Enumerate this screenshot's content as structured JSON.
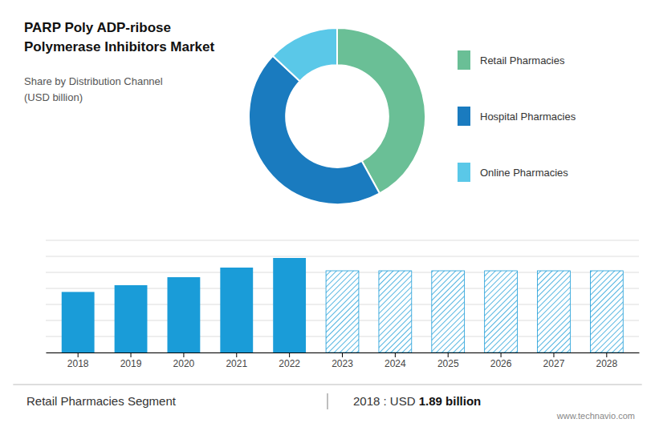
{
  "chart_data": [
    {
      "type": "pie",
      "title": [
        "PARP Poly ADP-ribose",
        "Polymerase Inhibitors Market"
      ],
      "subtitle": [
        "Share by Distribution Channel",
        "(USD billion)"
      ],
      "categories": [
        "Retail Pharmacies",
        "Hospital Pharmacies",
        "Online Pharmacies"
      ],
      "values": [
        42,
        45,
        13
      ],
      "colors": [
        "#6abf96",
        "#1a7bbf",
        "#5ac8e8"
      ],
      "legend": "right"
    },
    {
      "type": "bar",
      "categories": [
        "2018",
        "2019",
        "2020",
        "2021",
        "2022",
        "2023",
        "2024",
        "2025",
        "2026",
        "2027",
        "2028"
      ],
      "series": [
        {
          "color": "#1a9cd8",
          "values": [
            1.89,
            2.1,
            2.35,
            2.65,
            2.95,
            0,
            0,
            0,
            0,
            0,
            0
          ]
        },
        {
          "color": "#1a9cd8",
          "values": [
            0,
            0,
            0,
            0,
            0,
            2.55,
            2.55,
            2.55,
            2.55,
            2.55,
            2.55
          ]
        }
      ],
      "ylim": [
        0,
        3.5
      ],
      "yticks": [
        0,
        0.5,
        1,
        1.5,
        2,
        2.5,
        3,
        3.5
      ],
      "grid": true,
      "tick_labels": "x",
      "annotations": [
        "Retail Pharmacies Segment",
        "2018 : USD ",
        "1.89 billion",
        "www.technavio.com"
      ]
    }
  ]
}
